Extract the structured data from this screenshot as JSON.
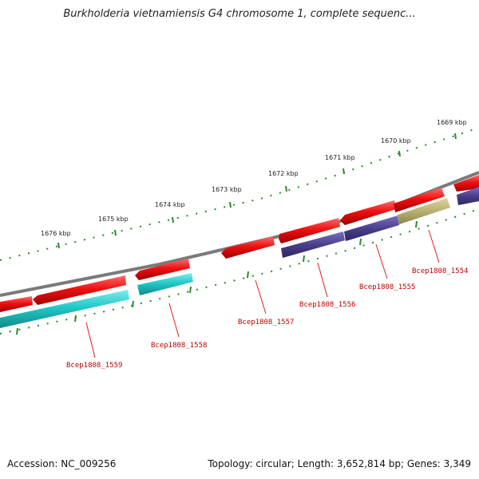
{
  "title": "Burkholderia vietnamiensis G4 chromosome 1, complete sequenc...",
  "footer": {
    "accession": "Accession: NC_009256",
    "topology": "Topology: circular; Length: 3,652,814 bp; Genes: 3,349"
  },
  "ruler": {
    "labels": [
      "1676 kbp",
      "1675 kbp",
      "1674 kbp",
      "1673 kbp",
      "1672 kbp",
      "1671 kbp",
      "1670 kbp",
      "1669 kbp"
    ]
  },
  "genes": [
    {
      "label": "Bcep1808_1559"
    },
    {
      "label": "Bcep1808_1558"
    },
    {
      "label": "Bcep1808_1557"
    },
    {
      "label": "Bcep1808_1556"
    },
    {
      "label": "Bcep1808_1555"
    },
    {
      "label": "Bcep1808_1554"
    }
  ],
  "colors": {
    "backbone": "#808080",
    "cds_forward": "#ee1111",
    "cds_reverse": "#22c8c8",
    "cds_purple": "#4a3f8c",
    "cds_olive": "#b8b070",
    "ticks": "#2a8a2a",
    "label": "#c00000"
  }
}
